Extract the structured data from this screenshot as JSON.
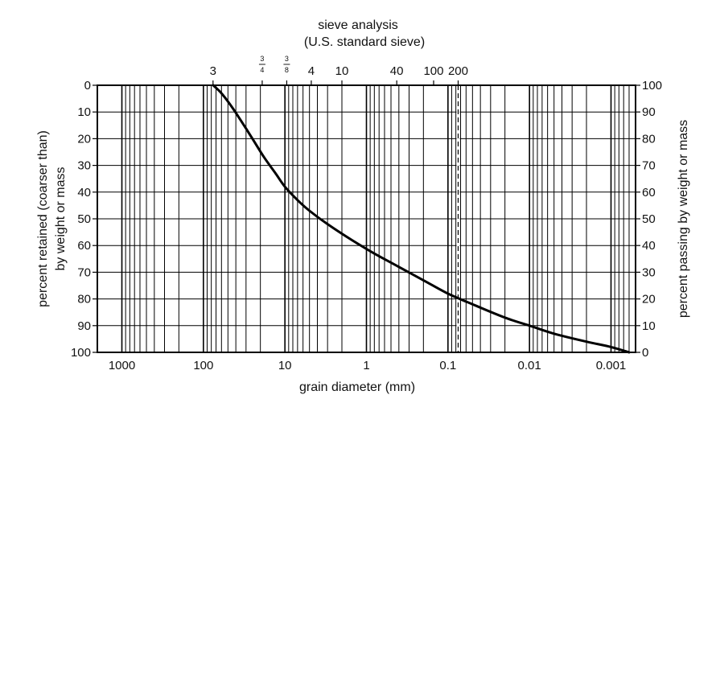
{
  "chart_data": {
    "type": "line",
    "title": "sieve analysis",
    "subtitle": "(U.S. standard sieve)",
    "xlabel": "grain diameter (mm)",
    "ylabel_left": "percent retained (coarser than) by weight or mass",
    "ylabel_left_lines": [
      "percent retained (coarser than)",
      "by weight or mass"
    ],
    "ylabel_right": "percent passing by weight or mass",
    "x_scale": "log",
    "x_reversed": true,
    "xlim": [
      2000,
      0.0005
    ],
    "x_ticks": [
      {
        "value": 1000,
        "label": "1000"
      },
      {
        "value": 100,
        "label": "100"
      },
      {
        "value": 10,
        "label": "10"
      },
      {
        "value": 1,
        "label": "1"
      },
      {
        "value": 0.1,
        "label": "0.1"
      },
      {
        "value": 0.01,
        "label": "0.01"
      },
      {
        "value": 0.001,
        "label": "0.001"
      }
    ],
    "y_left_ticks": [
      "0",
      "10",
      "20",
      "30",
      "40",
      "50",
      "60",
      "70",
      "80",
      "90",
      "100"
    ],
    "y_right_ticks": [
      "100",
      "90",
      "80",
      "70",
      "60",
      "50",
      "40",
      "30",
      "20",
      "10",
      "0"
    ],
    "ylim_left": [
      0,
      100
    ],
    "ylim_right": [
      100,
      0
    ],
    "sieves": [
      {
        "label": "3",
        "size_mm": 76.2
      },
      {
        "label": "3/4",
        "num": "3",
        "den": "4",
        "size_mm": 19.0
      },
      {
        "label": "3/8",
        "num": "3",
        "den": "8",
        "size_mm": 9.5
      },
      {
        "label": "4",
        "size_mm": 4.75
      },
      {
        "label": "10",
        "size_mm": 2.0
      },
      {
        "label": "40",
        "size_mm": 0.425
      },
      {
        "label": "100",
        "size_mm": 0.15
      },
      {
        "label": "200",
        "size_mm": 0.075
      }
    ],
    "dashed_reference_x": 0.075,
    "grid": true,
    "series": [
      {
        "x": [
          76,
          60,
          45,
          35,
          25,
          18,
          13,
          10,
          7,
          5,
          3,
          1.5,
          0.8,
          0.4,
          0.2,
          0.1,
          0.05,
          0.02,
          0.01,
          0.005,
          0.002,
          0.001,
          0.0006
        ],
        "values": [
          0,
          3,
          8,
          13,
          20,
          27,
          33,
          38,
          43,
          47,
          52,
          58,
          63,
          68,
          73,
          78,
          82,
          87,
          90,
          93,
          96,
          98,
          100
        ]
      }
    ]
  }
}
